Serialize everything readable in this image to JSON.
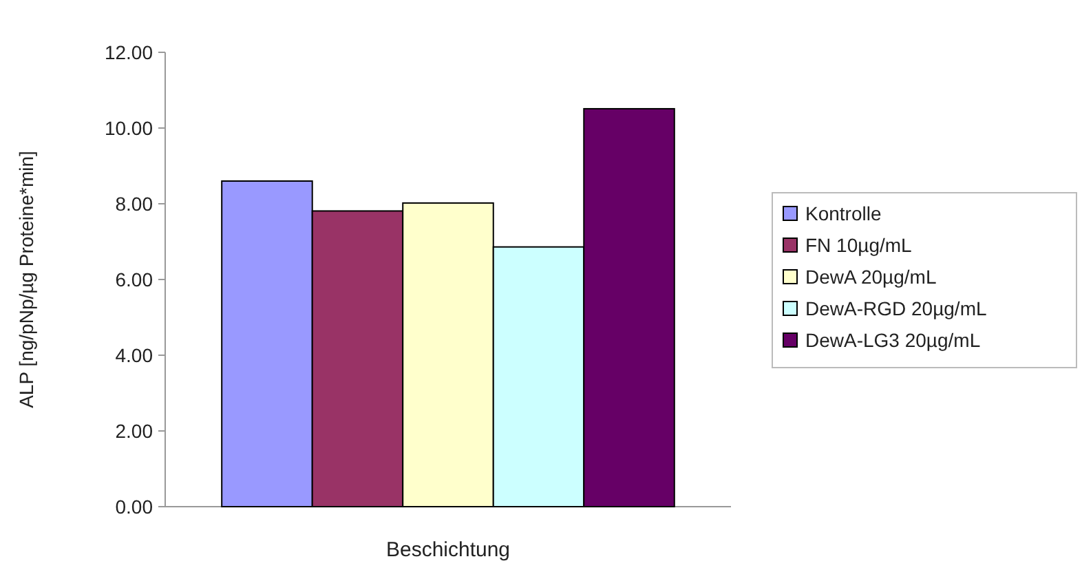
{
  "chart_data": {
    "type": "bar",
    "xlabel": "Beschichtung",
    "ylabel": "ALP [ng/pNp/µg Proteine*min]",
    "categories": [
      null
    ],
    "series": [
      {
        "name": "Kontrolle",
        "color": "#9999ff",
        "values": [
          8.6
        ]
      },
      {
        "name": "FN 10µg/mL",
        "color": "#993366",
        "values": [
          7.81
        ]
      },
      {
        "name": "DewA 20µg/mL",
        "color": "#ffffcc",
        "values": [
          8.02
        ]
      },
      {
        "name": "DewA-RGD 20µg/mL",
        "color": "#ccffff",
        "values": [
          6.86
        ]
      },
      {
        "name": "DewA-LG3 20µg/mL",
        "color": "#660066",
        "values": [
          10.51
        ]
      }
    ],
    "ylim": [
      0,
      12
    ],
    "yticks": [
      {
        "value": 0,
        "label": "0.00"
      },
      {
        "value": 2,
        "label": "2.00"
      },
      {
        "value": 4,
        "label": "4.00"
      },
      {
        "value": 6,
        "label": "6.00"
      },
      {
        "value": 8,
        "label": "8.00"
      },
      {
        "value": 10,
        "label": "10.00"
      },
      {
        "value": 12,
        "label": "12.00"
      }
    ],
    "grid": false,
    "legend": "right"
  }
}
